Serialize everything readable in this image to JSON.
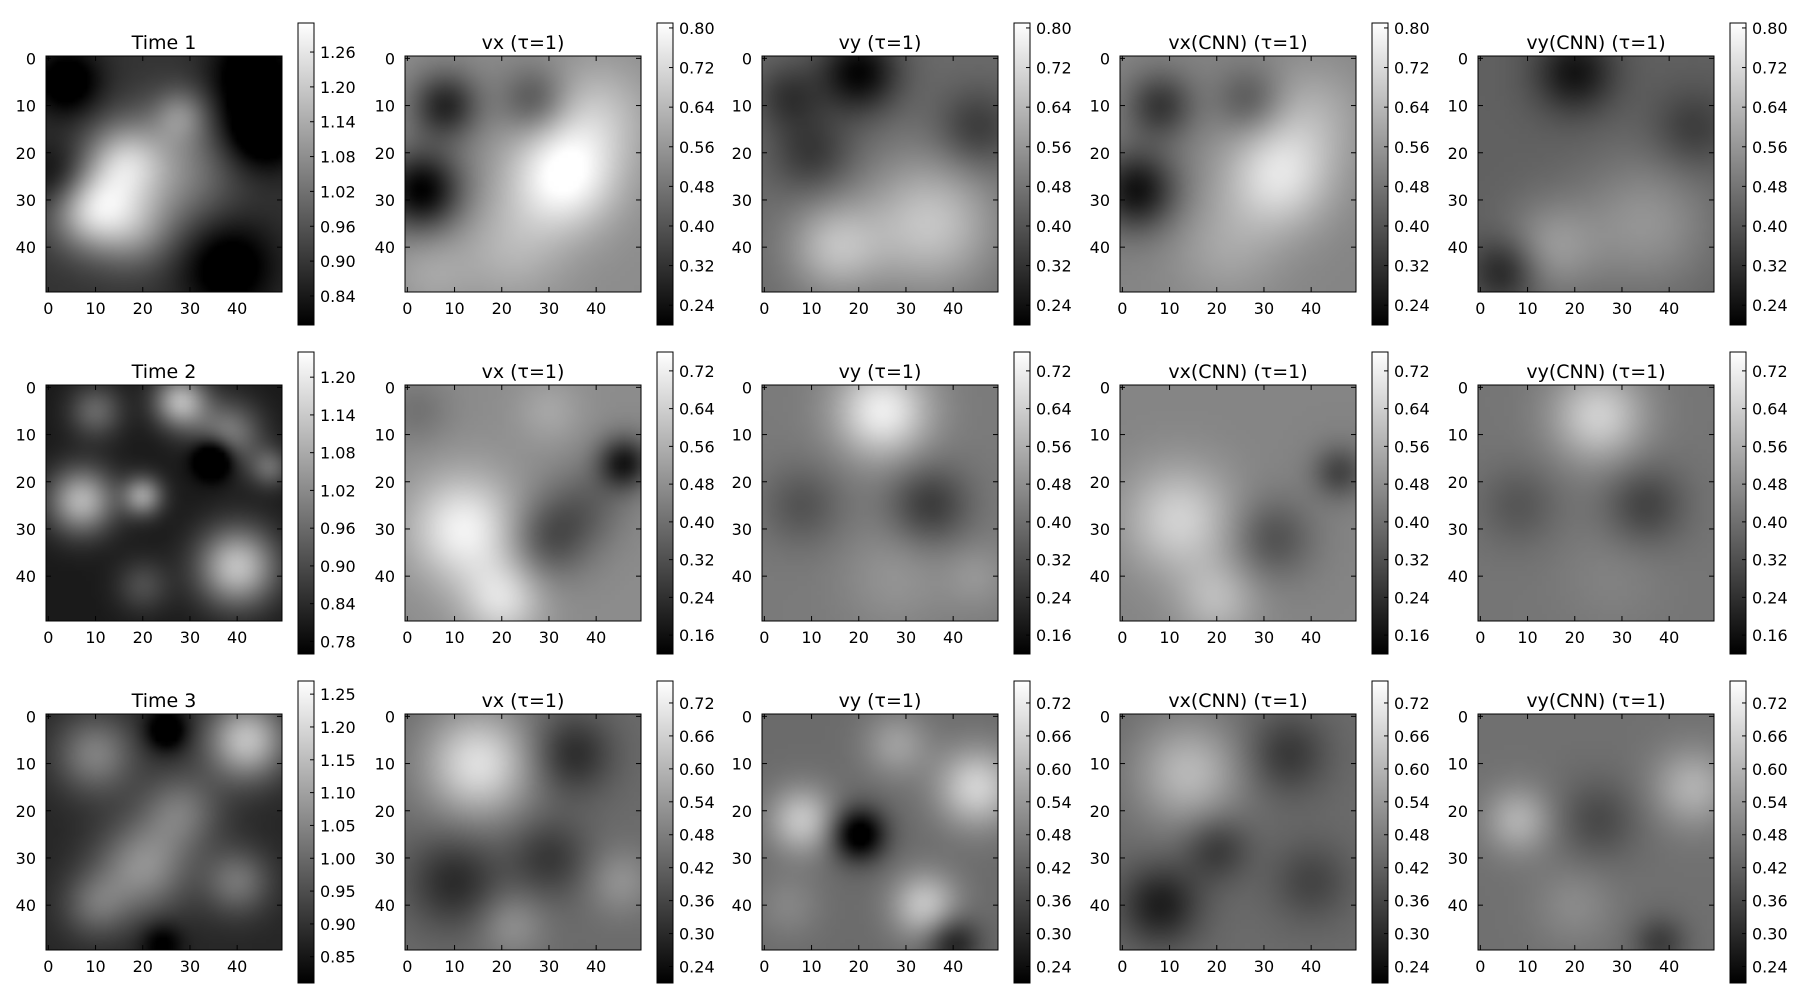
{
  "figure": {
    "colormap": "gray",
    "axis_color": "#000000",
    "background": "#ffffff"
  },
  "chart_data": [
    {
      "type": "heatmap",
      "row": 0,
      "col": 0,
      "title": "Time 1",
      "xlim": [
        0,
        49
      ],
      "ylim": [
        49,
        0
      ],
      "xticks": [
        0,
        10,
        20,
        30,
        40
      ],
      "yticks": [
        0,
        10,
        20,
        30,
        40
      ],
      "colorbar": {
        "vmin": 0.79,
        "vmax": 1.31,
        "ticks": [
          "1.26",
          "1.20",
          "1.14",
          "1.08",
          "1.02",
          "0.96",
          "0.90",
          "0.84"
        ]
      },
      "blobs": [
        [
          9,
          32,
          6,
          0.55
        ],
        [
          16,
          22,
          6,
          0.45
        ],
        [
          27,
          24,
          9,
          0.3
        ],
        [
          18,
          36,
          6,
          0.3
        ],
        [
          45,
          15,
          6,
          -0.4
        ],
        [
          4,
          5,
          5,
          -0.3
        ],
        [
          43,
          3,
          6,
          -0.3
        ],
        [
          38,
          44,
          7,
          -0.3
        ],
        [
          2,
          25,
          5,
          -0.2
        ],
        [
          28,
          12,
          4,
          0.25
        ]
      ],
      "base": 0.2
    },
    {
      "type": "heatmap",
      "row": 0,
      "col": 1,
      "title": "vx (τ=1)",
      "xlim": [
        0,
        49
      ],
      "ylim": [
        49,
        0
      ],
      "xticks": [
        0,
        10,
        20,
        30,
        40
      ],
      "yticks": [
        0,
        10,
        20,
        30,
        40
      ],
      "colorbar": {
        "vmin": 0.2,
        "vmax": 0.81,
        "ticks": [
          "0.80",
          "0.72",
          "0.64",
          "0.56",
          "0.48",
          "0.40",
          "0.32",
          "0.24"
        ]
      },
      "blobs": [
        [
          3,
          28,
          6,
          -0.55
        ],
        [
          8,
          10,
          5,
          -0.4
        ],
        [
          33,
          25,
          8,
          0.45
        ],
        [
          27,
          9,
          5,
          -0.25
        ],
        [
          40,
          12,
          8,
          0.2
        ],
        [
          22,
          40,
          8,
          0.15
        ],
        [
          5,
          45,
          6,
          0.1
        ]
      ],
      "base": 0.55
    },
    {
      "type": "heatmap",
      "row": 0,
      "col": 2,
      "title": "vy (τ=1)",
      "xlim": [
        0,
        49
      ],
      "ylim": [
        49,
        0
      ],
      "xticks": [
        0,
        10,
        20,
        30,
        40
      ],
      "yticks": [
        0,
        10,
        20,
        30,
        40
      ],
      "colorbar": {
        "vmin": 0.2,
        "vmax": 0.81,
        "ticks": [
          "0.80",
          "0.72",
          "0.64",
          "0.56",
          "0.48",
          "0.40",
          "0.32",
          "0.24"
        ]
      },
      "blobs": [
        [
          20,
          3,
          6,
          -0.4
        ],
        [
          10,
          20,
          6,
          -0.2
        ],
        [
          35,
          35,
          10,
          0.35
        ],
        [
          15,
          40,
          7,
          0.3
        ],
        [
          45,
          15,
          6,
          -0.2
        ],
        [
          5,
          8,
          5,
          -0.2
        ]
      ],
      "base": 0.42
    },
    {
      "type": "heatmap",
      "row": 0,
      "col": 3,
      "title": "vx(CNN) (τ=1)",
      "xlim": [
        0,
        49
      ],
      "ylim": [
        49,
        0
      ],
      "xticks": [
        0,
        10,
        20,
        30,
        40
      ],
      "yticks": [
        0,
        10,
        20,
        30,
        40
      ],
      "colorbar": {
        "vmin": 0.2,
        "vmax": 0.81,
        "ticks": [
          "0.80",
          "0.72",
          "0.64",
          "0.56",
          "0.48",
          "0.40",
          "0.32",
          "0.24"
        ]
      },
      "blobs": [
        [
          3,
          28,
          6,
          -0.45
        ],
        [
          8,
          10,
          5,
          -0.3
        ],
        [
          33,
          25,
          8,
          0.35
        ],
        [
          27,
          9,
          5,
          -0.2
        ],
        [
          40,
          12,
          8,
          0.15
        ],
        [
          22,
          40,
          8,
          0.12
        ]
      ],
      "base": 0.52
    },
    {
      "type": "heatmap",
      "row": 0,
      "col": 4,
      "title": "vy(CNN) (τ=1)",
      "xlim": [
        0,
        49
      ],
      "ylim": [
        49,
        0
      ],
      "xticks": [
        0,
        10,
        20,
        30,
        40
      ],
      "yticks": [
        0,
        10,
        20,
        30,
        40
      ],
      "colorbar": {
        "vmin": 0.2,
        "vmax": 0.81,
        "ticks": [
          "0.80",
          "0.72",
          "0.64",
          "0.56",
          "0.48",
          "0.40",
          "0.32",
          "0.24"
        ]
      },
      "blobs": [
        [
          20,
          3,
          6,
          -0.3
        ],
        [
          35,
          35,
          10,
          0.2
        ],
        [
          15,
          40,
          7,
          0.2
        ],
        [
          5,
          45,
          5,
          -0.25
        ],
        [
          45,
          15,
          6,
          -0.15
        ]
      ],
      "base": 0.38
    },
    {
      "type": "heatmap",
      "row": 1,
      "col": 0,
      "title": "Time 2",
      "xlim": [
        0,
        49
      ],
      "ylim": [
        49,
        0
      ],
      "xticks": [
        0,
        10,
        20,
        30,
        40
      ],
      "yticks": [
        0,
        10,
        20,
        30,
        40
      ],
      "colorbar": {
        "vmin": 0.76,
        "vmax": 1.24,
        "ticks": [
          "1.20",
          "1.14",
          "1.08",
          "1.02",
          "0.96",
          "0.90",
          "0.84",
          "0.78"
        ]
      },
      "blobs": [
        [
          7,
          24,
          5,
          0.6
        ],
        [
          28,
          3,
          4,
          0.6
        ],
        [
          40,
          38,
          6,
          0.65
        ],
        [
          20,
          23,
          3,
          0.5
        ],
        [
          38,
          10,
          5,
          0.4
        ],
        [
          10,
          5,
          4,
          0.3
        ],
        [
          47,
          17,
          3,
          0.3
        ],
        [
          35,
          15,
          3,
          -0.5
        ],
        [
          20,
          42,
          4,
          0.2
        ]
      ],
      "base": 0.1
    },
    {
      "type": "heatmap",
      "row": 1,
      "col": 1,
      "title": "vx (τ=1)",
      "xlim": [
        0,
        49
      ],
      "ylim": [
        49,
        0
      ],
      "xticks": [
        0,
        10,
        20,
        30,
        40
      ],
      "yticks": [
        0,
        10,
        20,
        30,
        40
      ],
      "colorbar": {
        "vmin": 0.12,
        "vmax": 0.76,
        "ticks": [
          "0.72",
          "0.64",
          "0.56",
          "0.48",
          "0.40",
          "0.32",
          "0.24",
          "0.16"
        ]
      },
      "blobs": [
        [
          12,
          30,
          8,
          0.4
        ],
        [
          20,
          45,
          6,
          0.3
        ],
        [
          46,
          16,
          4,
          -0.45
        ],
        [
          30,
          32,
          6,
          -0.25
        ],
        [
          38,
          25,
          6,
          -0.15
        ],
        [
          2,
          5,
          5,
          -0.1
        ],
        [
          30,
          5,
          5,
          0.1
        ]
      ],
      "base": 0.55
    },
    {
      "type": "heatmap",
      "row": 1,
      "col": 2,
      "title": "vy (τ=1)",
      "xlim": [
        0,
        49
      ],
      "ylim": [
        49,
        0
      ],
      "xticks": [
        0,
        10,
        20,
        30,
        40
      ],
      "yticks": [
        0,
        10,
        20,
        30,
        40
      ],
      "colorbar": {
        "vmin": 0.12,
        "vmax": 0.76,
        "ticks": [
          "0.72",
          "0.64",
          "0.56",
          "0.48",
          "0.40",
          "0.32",
          "0.24",
          "0.16"
        ]
      },
      "blobs": [
        [
          25,
          5,
          7,
          0.45
        ],
        [
          35,
          25,
          6,
          -0.25
        ],
        [
          8,
          25,
          6,
          -0.15
        ],
        [
          28,
          40,
          8,
          0.1
        ],
        [
          45,
          40,
          5,
          0.1
        ]
      ],
      "base": 0.48
    },
    {
      "type": "heatmap",
      "row": 1,
      "col": 3,
      "title": "vx(CNN) (τ=1)",
      "xlim": [
        0,
        49
      ],
      "ylim": [
        49,
        0
      ],
      "xticks": [
        0,
        10,
        20,
        30,
        40
      ],
      "yticks": [
        0,
        10,
        20,
        30,
        40
      ],
      "colorbar": {
        "vmin": 0.12,
        "vmax": 0.76,
        "ticks": [
          "0.72",
          "0.64",
          "0.56",
          "0.48",
          "0.40",
          "0.32",
          "0.24",
          "0.16"
        ]
      },
      "blobs": [
        [
          12,
          28,
          8,
          0.3
        ],
        [
          20,
          45,
          6,
          0.2
        ],
        [
          46,
          18,
          4,
          -0.25
        ],
        [
          32,
          32,
          6,
          -0.2
        ]
      ],
      "base": 0.52
    },
    {
      "type": "heatmap",
      "row": 1,
      "col": 4,
      "title": "vy(CNN) (τ=1)",
      "xlim": [
        0,
        49
      ],
      "ylim": [
        49,
        0
      ],
      "xticks": [
        0,
        10,
        20,
        30,
        40
      ],
      "yticks": [
        0,
        10,
        20,
        30,
        40
      ],
      "colorbar": {
        "vmin": 0.12,
        "vmax": 0.76,
        "ticks": [
          "0.72",
          "0.64",
          "0.56",
          "0.48",
          "0.40",
          "0.32",
          "0.24",
          "0.16"
        ]
      },
      "blobs": [
        [
          25,
          6,
          7,
          0.35
        ],
        [
          35,
          25,
          6,
          -0.2
        ],
        [
          8,
          25,
          6,
          -0.12
        ],
        [
          28,
          40,
          8,
          0.05
        ]
      ],
      "base": 0.46
    },
    {
      "type": "heatmap",
      "row": 2,
      "col": 0,
      "title": "Time 3",
      "xlim": [
        0,
        49
      ],
      "ylim": [
        49,
        0
      ],
      "xticks": [
        0,
        10,
        20,
        30,
        40
      ],
      "yticks": [
        0,
        10,
        20,
        30,
        40
      ],
      "colorbar": {
        "vmin": 0.81,
        "vmax": 1.27,
        "ticks": [
          "1.25",
          "1.20",
          "1.15",
          "1.10",
          "1.05",
          "1.00",
          "0.95",
          "0.90",
          "0.85"
        ]
      },
      "blobs": [
        [
          42,
          5,
          6,
          0.6
        ],
        [
          10,
          8,
          6,
          0.35
        ],
        [
          28,
          20,
          6,
          0.3
        ],
        [
          20,
          32,
          7,
          0.4
        ],
        [
          10,
          40,
          5,
          0.25
        ],
        [
          40,
          35,
          5,
          0.3
        ],
        [
          25,
          3,
          3,
          -0.3
        ],
        [
          24,
          48,
          3,
          -0.2
        ]
      ],
      "base": 0.15
    },
    {
      "type": "heatmap",
      "row": 2,
      "col": 1,
      "title": "vx (τ=1)",
      "xlim": [
        0,
        49
      ],
      "ylim": [
        49,
        0
      ],
      "xticks": [
        0,
        10,
        20,
        30,
        40
      ],
      "yticks": [
        0,
        10,
        20,
        30,
        40
      ],
      "colorbar": {
        "vmin": 0.21,
        "vmax": 0.76,
        "ticks": [
          "0.72",
          "0.66",
          "0.60",
          "0.54",
          "0.48",
          "0.42",
          "0.36",
          "0.30",
          "0.24"
        ]
      },
      "blobs": [
        [
          15,
          10,
          8,
          0.45
        ],
        [
          35,
          8,
          6,
          -0.25
        ],
        [
          10,
          35,
          7,
          -0.25
        ],
        [
          30,
          30,
          6,
          -0.2
        ],
        [
          22,
          44,
          5,
          0.15
        ],
        [
          45,
          35,
          5,
          0.15
        ]
      ],
      "base": 0.42
    },
    {
      "type": "heatmap",
      "row": 2,
      "col": 2,
      "title": "vy (τ=1)",
      "xlim": [
        0,
        49
      ],
      "ylim": [
        49,
        0
      ],
      "xticks": [
        0,
        10,
        20,
        30,
        40
      ],
      "yticks": [
        0,
        10,
        20,
        30,
        40
      ],
      "colorbar": {
        "vmin": 0.21,
        "vmax": 0.76,
        "ticks": [
          "0.72",
          "0.66",
          "0.60",
          "0.54",
          "0.48",
          "0.42",
          "0.36",
          "0.30",
          "0.24"
        ]
      },
      "blobs": [
        [
          20,
          25,
          4,
          -0.5
        ],
        [
          45,
          15,
          6,
          0.4
        ],
        [
          8,
          22,
          5,
          0.35
        ],
        [
          34,
          40,
          5,
          0.35
        ],
        [
          28,
          6,
          5,
          0.2
        ],
        [
          40,
          48,
          4,
          -0.3
        ],
        [
          5,
          40,
          5,
          0.1
        ]
      ],
      "base": 0.42
    },
    {
      "type": "heatmap",
      "row": 2,
      "col": 3,
      "title": "vx(CNN) (τ=1)",
      "xlim": [
        0,
        49
      ],
      "ylim": [
        49,
        0
      ],
      "xticks": [
        0,
        10,
        20,
        30,
        40
      ],
      "yticks": [
        0,
        10,
        20,
        30,
        40
      ],
      "colorbar": {
        "vmin": 0.21,
        "vmax": 0.76,
        "ticks": [
          "0.72",
          "0.66",
          "0.60",
          "0.54",
          "0.48",
          "0.42",
          "0.36",
          "0.30",
          "0.24"
        ]
      },
      "blobs": [
        [
          14,
          12,
          8,
          0.3
        ],
        [
          35,
          8,
          6,
          -0.2
        ],
        [
          8,
          40,
          6,
          -0.3
        ],
        [
          20,
          28,
          5,
          -0.2
        ],
        [
          40,
          35,
          6,
          -0.15
        ]
      ],
      "base": 0.42
    },
    {
      "type": "heatmap",
      "row": 2,
      "col": 4,
      "title": "vy(CNN) (τ=1)",
      "xlim": [
        0,
        49
      ],
      "ylim": [
        49,
        0
      ],
      "xticks": [
        0,
        10,
        20,
        30,
        40
      ],
      "yticks": [
        0,
        10,
        20,
        30,
        40
      ],
      "colorbar": {
        "vmin": 0.21,
        "vmax": 0.76,
        "ticks": [
          "0.72",
          "0.66",
          "0.60",
          "0.54",
          "0.48",
          "0.42",
          "0.36",
          "0.30",
          "0.24"
        ]
      },
      "blobs": [
        [
          45,
          15,
          6,
          0.25
        ],
        [
          8,
          22,
          5,
          0.25
        ],
        [
          25,
          22,
          6,
          -0.15
        ],
        [
          38,
          48,
          4,
          -0.2
        ],
        [
          20,
          40,
          6,
          0.1
        ]
      ],
      "base": 0.44
    }
  ]
}
